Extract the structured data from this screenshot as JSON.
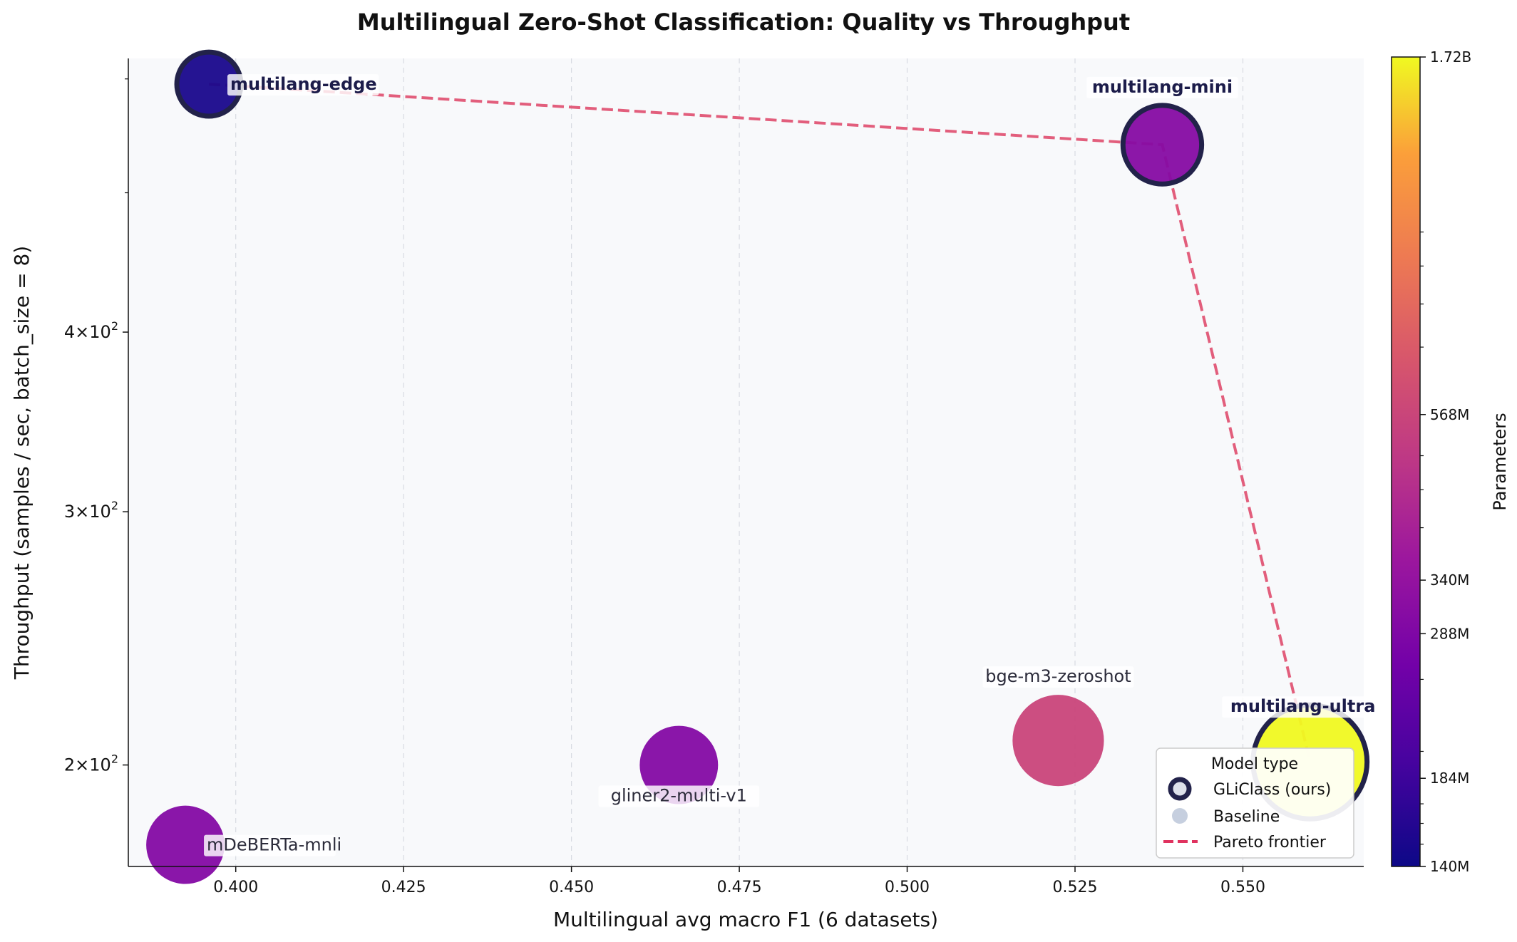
{
  "chart_data": {
    "type": "scatter",
    "title": "Multilingual Zero-Shot Classification: Quality vs Throughput",
    "xlabel": "Multilingual avg macro F1  (6 datasets)",
    "ylabel": "Throughput  (samples / sec,  batch_size = 8)",
    "xlim": [
      0.384,
      0.568
    ],
    "ylim": [
      170,
      620
    ],
    "yscale": "log",
    "x_ticks": [
      "0.400",
      "0.425",
      "0.450",
      "0.475",
      "0.500",
      "0.525",
      "0.550"
    ],
    "x_tick_values": [
      0.4,
      0.425,
      0.45,
      0.475,
      0.5,
      0.525,
      0.55
    ],
    "y_ticks": [
      {
        "value": 200,
        "base": "2",
        "exp": "2"
      },
      {
        "value": 300,
        "base": "3",
        "exp": "2"
      },
      {
        "value": 400,
        "base": "4",
        "exp": "2"
      }
    ],
    "y_minor_ticks": [
      500,
      600
    ],
    "grid": "x-dashed",
    "points": [
      {
        "name": "multilang-edge",
        "x": 0.396,
        "y": 595,
        "params_m": 150,
        "ours": true,
        "label_pos": "right"
      },
      {
        "name": "multilang-mini",
        "x": 0.538,
        "y": 540,
        "params_m": 305,
        "ours": true,
        "label_pos": "above"
      },
      {
        "name": "multilang-ultra",
        "x": 0.56,
        "y": 201,
        "params_m": 1720,
        "ours": true,
        "label_pos": "above-left"
      },
      {
        "name": "bge-m3-zeroshot",
        "x": 0.5225,
        "y": 208,
        "params_m": 568,
        "ours": false,
        "label_pos": "above"
      },
      {
        "name": "gliner2-multi-v1",
        "x": 0.466,
        "y": 200,
        "params_m": 300,
        "ours": false,
        "label_pos": "below"
      },
      {
        "name": "mDeBERTa-mnli",
        "x": 0.3925,
        "y": 176,
        "params_m": 300,
        "ours": false,
        "label_pos": "right"
      }
    ],
    "pareto_frontier": [
      {
        "x": 0.396,
        "y": 595
      },
      {
        "x": 0.538,
        "y": 540
      },
      {
        "x": 0.56,
        "y": 201
      }
    ],
    "colorbar": {
      "label": "Parameters",
      "scale": "log",
      "min_m": 140,
      "max_m": 1720,
      "ticks": [
        {
          "label": "1.72B",
          "value_m": 1720
        },
        {
          "label": "568M",
          "value_m": 568
        },
        {
          "label": "340M",
          "value_m": 340
        },
        {
          "label": "288M",
          "value_m": 288
        },
        {
          "label": "184M",
          "value_m": 184
        },
        {
          "label": "140M",
          "value_m": 140
        }
      ]
    },
    "legend": {
      "title": "Model type",
      "position": "bottom-right",
      "items": [
        {
          "label": "GLiClass (ours)",
          "kind": "ours"
        },
        {
          "label": "Baseline",
          "kind": "baseline"
        },
        {
          "label": "Pareto frontier",
          "kind": "line"
        }
      ]
    },
    "colors": {
      "plot_bg": "#f8f9fb",
      "ours_edge": "#22224a",
      "ours_label": "#1c1c4a",
      "baseline_label": "#2b2b3a",
      "pareto": "#e05575",
      "legend_ours_fill": "#dde0ea",
      "legend_baseline_fill": "#c6cfdf"
    }
  }
}
